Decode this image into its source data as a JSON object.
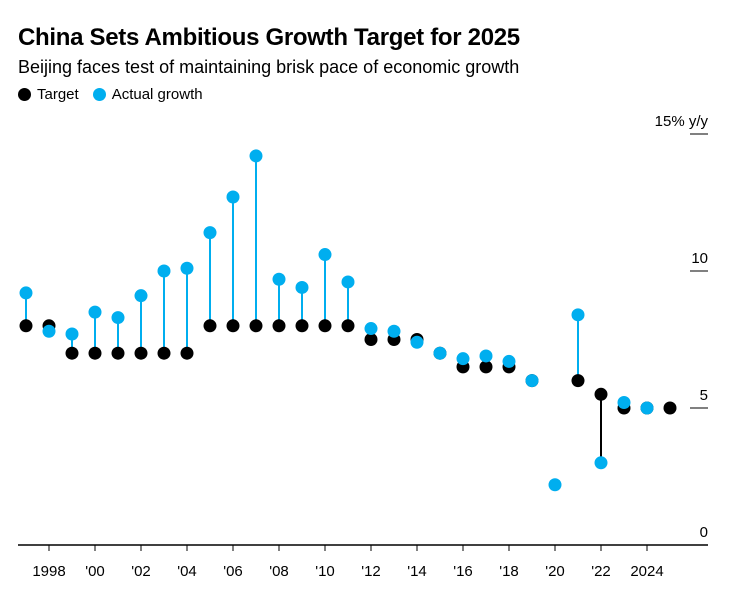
{
  "chart_data": {
    "type": "dot-stem",
    "title": "China Sets Ambitious Growth Target for 2025",
    "subtitle": "Beijing faces test of maintaining brisk pace of economic growth",
    "ylabel_unit": "15% y/y",
    "ylim": [
      0,
      15
    ],
    "yticks": [
      0,
      5,
      10,
      15
    ],
    "ytick_labels": [
      "0",
      "5",
      "10",
      "15% y/y"
    ],
    "xlim": [
      1997,
      2025
    ],
    "xticks": [
      1998,
      2000,
      2002,
      2004,
      2006,
      2008,
      2010,
      2012,
      2014,
      2016,
      2018,
      2020,
      2022,
      2024
    ],
    "xtick_labels": [
      "1998",
      "'00",
      "'02",
      "'04",
      "'06",
      "'08",
      "'10",
      "'12",
      "'14",
      "'16",
      "'18",
      "'20",
      "'22",
      "2024"
    ],
    "legend_position": "top-left",
    "grid": false,
    "colors": {
      "target": "#000000",
      "actual": "#00aeef"
    },
    "series": [
      {
        "name": "Target",
        "x": [
          1997,
          1998,
          1999,
          2000,
          2001,
          2002,
          2003,
          2004,
          2005,
          2006,
          2007,
          2008,
          2009,
          2010,
          2011,
          2012,
          2013,
          2014,
          2015,
          2016,
          2017,
          2018,
          2019,
          2021,
          2022,
          2023,
          2024,
          2025
        ],
        "values": [
          8,
          8,
          7,
          7,
          7,
          7,
          7,
          7,
          8,
          8,
          8,
          8,
          8,
          8,
          8,
          7.5,
          7.5,
          7.5,
          7,
          6.5,
          6.5,
          6.5,
          6,
          6,
          5.5,
          5,
          5,
          5
        ]
      },
      {
        "name": "Actual growth",
        "x": [
          1997,
          1998,
          1999,
          2000,
          2001,
          2002,
          2003,
          2004,
          2005,
          2006,
          2007,
          2008,
          2009,
          2010,
          2011,
          2012,
          2013,
          2014,
          2015,
          2016,
          2017,
          2018,
          2019,
          2020,
          2021,
          2022,
          2023,
          2024
        ],
        "values": [
          9.2,
          7.8,
          7.7,
          8.5,
          8.3,
          9.1,
          10.0,
          10.1,
          11.4,
          12.7,
          14.2,
          9.7,
          9.4,
          10.6,
          9.6,
          7.9,
          7.8,
          7.4,
          7.0,
          6.8,
          6.9,
          6.7,
          6.0,
          2.2,
          8.4,
          3.0,
          5.2,
          5.0
        ]
      }
    ]
  }
}
